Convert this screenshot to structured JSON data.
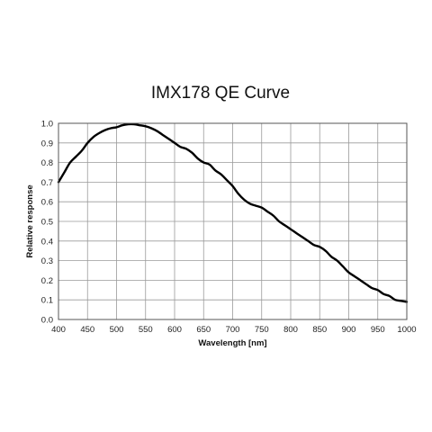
{
  "chart_data": {
    "type": "line",
    "title": "IMX178 QE Curve",
    "xlabel": "Wavelength [nm]",
    "ylabel": "Relative response",
    "xlim": [
      400,
      1000
    ],
    "ylim": [
      0.0,
      1.0
    ],
    "xticks": [
      "400",
      "450",
      "500",
      "550",
      "600",
      "650",
      "700",
      "750",
      "800",
      "850",
      "900",
      "950",
      "1000"
    ],
    "yticks": [
      "0.0",
      "0.1",
      "0.2",
      "0.3",
      "0.4",
      "0.5",
      "0.6",
      "0.7",
      "0.8",
      "0.9",
      "1.0"
    ],
    "grid": true,
    "series": [
      {
        "x": [
          400,
          410,
          420,
          430,
          440,
          450,
          460,
          470,
          480,
          490,
          500,
          510,
          520,
          530,
          540,
          550,
          560,
          570,
          580,
          590,
          600,
          610,
          620,
          630,
          640,
          650,
          660,
          670,
          680,
          690,
          700,
          710,
          720,
          730,
          740,
          750,
          760,
          770,
          780,
          790,
          800,
          810,
          820,
          830,
          840,
          850,
          860,
          870,
          880,
          890,
          900,
          910,
          920,
          930,
          940,
          950,
          960,
          970,
          980,
          990,
          1000
        ],
        "y": [
          0.7,
          0.75,
          0.8,
          0.83,
          0.86,
          0.9,
          0.93,
          0.95,
          0.965,
          0.975,
          0.98,
          0.99,
          0.995,
          0.995,
          0.99,
          0.985,
          0.975,
          0.96,
          0.94,
          0.92,
          0.9,
          0.88,
          0.87,
          0.85,
          0.82,
          0.8,
          0.79,
          0.76,
          0.74,
          0.71,
          0.68,
          0.64,
          0.61,
          0.59,
          0.58,
          0.57,
          0.55,
          0.53,
          0.5,
          0.48,
          0.46,
          0.44,
          0.42,
          0.4,
          0.38,
          0.37,
          0.35,
          0.32,
          0.3,
          0.27,
          0.24,
          0.22,
          0.2,
          0.18,
          0.16,
          0.15,
          0.13,
          0.12,
          0.1,
          0.095,
          0.09
        ]
      }
    ]
  }
}
